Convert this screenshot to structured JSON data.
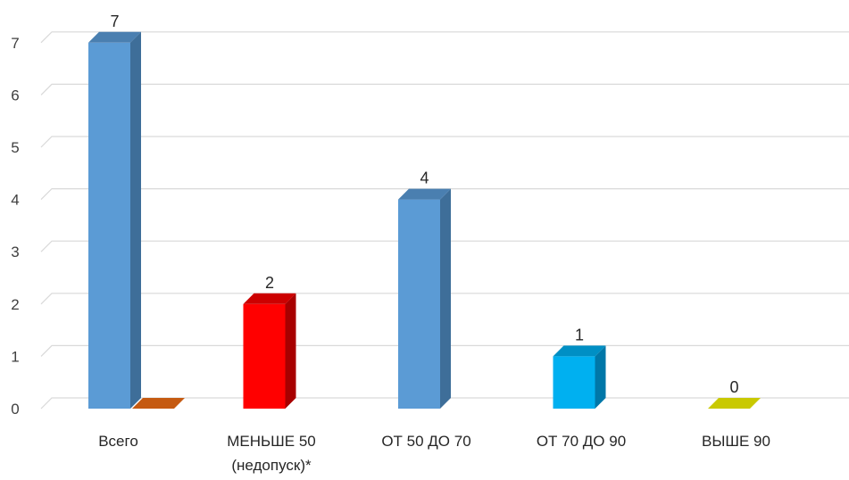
{
  "chart_data": {
    "type": "bar",
    "style": "3d-column",
    "categories": [
      [
        "Всего"
      ],
      [
        "МЕНЬШЕ 50",
        "(недопуск)*"
      ],
      [
        "ОТ 50 ДО 70"
      ],
      [
        "ОТ 70 ДО 90"
      ],
      [
        "ВЫШЕ 90"
      ]
    ],
    "bars": [
      {
        "category_index": 0,
        "value": 7,
        "label": "7",
        "color": "#5b9bd5",
        "side": "#3e6e99",
        "top": "#4a7fb0"
      },
      {
        "category_index": 0,
        "value": 0,
        "label": "",
        "color": "#c55a11",
        "side": "#8e400b",
        "top": "#c55a11"
      },
      {
        "category_index": 1,
        "value": 2,
        "label": "2",
        "color": "#ff0000",
        "side": "#a80000",
        "top": "#cc0000"
      },
      {
        "category_index": 2,
        "value": 4,
        "label": "4",
        "color": "#5b9bd5",
        "side": "#3e6e99",
        "top": "#4a7fb0"
      },
      {
        "category_index": 3,
        "value": 1,
        "label": "1",
        "color": "#00b0f0",
        "side": "#0077a8",
        "top": "#008fc4"
      },
      {
        "category_index": 4,
        "value": 0,
        "label": "0",
        "color": "#c9c900",
        "side": "#8f8f00",
        "top": "#c9c900"
      }
    ],
    "y_ticks": [
      "0",
      "1",
      "2",
      "3",
      "4",
      "5",
      "6",
      "7"
    ],
    "ylim": [
      0,
      7
    ],
    "grid": true,
    "legend": "none",
    "gridline_color": "#d9d9d9"
  }
}
